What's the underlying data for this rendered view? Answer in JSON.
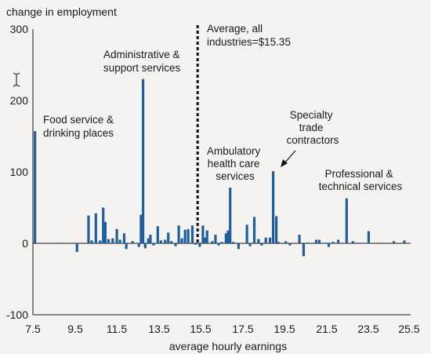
{
  "chart_data": {
    "type": "bar",
    "ylabel": "change in employment",
    "xlabel": "average hourly earnings",
    "xlim": [
      7.5,
      25.5
    ],
    "ylim": [
      -100,
      300
    ],
    "x_ticks": [
      "7.5",
      "9.5",
      "11.5",
      "13.5",
      "15.5",
      "17.5",
      "19.5",
      "21.5",
      "23.5",
      "25.5"
    ],
    "y_ticks": [
      "300",
      "200",
      "100",
      "0",
      "-100"
    ],
    "bar_color": "#1f5fa0",
    "reference_line": {
      "x": 15.35,
      "style": "dotted"
    },
    "annotations": [
      {
        "id": "food",
        "lines": [
          "Food service &",
          "drinking places"
        ]
      },
      {
        "id": "admin",
        "lines": [
          "Administrative &",
          "support services"
        ]
      },
      {
        "id": "average",
        "lines": [
          "Average, all",
          "industries=$15.35"
        ]
      },
      {
        "id": "ambulatory",
        "lines": [
          "Ambulatory",
          "health care",
          "services"
        ]
      },
      {
        "id": "specialty",
        "lines": [
          "Specialty",
          "trade",
          "contractors"
        ]
      },
      {
        "id": "professional",
        "lines": [
          "Professional &",
          "technical services"
        ]
      }
    ],
    "series": [
      {
        "points": [
          [
            7.6,
            157
          ],
          [
            8.7,
            1
          ],
          [
            9.6,
            -12
          ],
          [
            10.15,
            39
          ],
          [
            10.3,
            4
          ],
          [
            10.5,
            42
          ],
          [
            10.7,
            4
          ],
          [
            10.85,
            50
          ],
          [
            10.95,
            30
          ],
          [
            11.1,
            6
          ],
          [
            11.3,
            7
          ],
          [
            11.5,
            20
          ],
          [
            11.65,
            5
          ],
          [
            11.85,
            14
          ],
          [
            11.95,
            -8
          ],
          [
            12.25,
            3
          ],
          [
            12.55,
            -5
          ],
          [
            12.65,
            40
          ],
          [
            12.75,
            230
          ],
          [
            12.85,
            -7
          ],
          [
            13.0,
            7
          ],
          [
            13.1,
            12
          ],
          [
            13.25,
            -3
          ],
          [
            13.45,
            24
          ],
          [
            13.6,
            4
          ],
          [
            13.8,
            5
          ],
          [
            13.95,
            15
          ],
          [
            14.1,
            3
          ],
          [
            14.3,
            -4
          ],
          [
            14.45,
            25
          ],
          [
            14.6,
            7
          ],
          [
            14.75,
            19
          ],
          [
            14.9,
            20
          ],
          [
            15.1,
            25
          ],
          [
            15.25,
            -2
          ],
          [
            15.45,
            -5
          ],
          [
            15.6,
            25
          ],
          [
            15.7,
            8
          ],
          [
            15.8,
            18
          ],
          [
            16.05,
            3
          ],
          [
            16.2,
            12
          ],
          [
            16.35,
            -3
          ],
          [
            16.5,
            2
          ],
          [
            16.7,
            14
          ],
          [
            16.8,
            18
          ],
          [
            16.9,
            78
          ],
          [
            17.05,
            2
          ],
          [
            17.3,
            -8
          ],
          [
            17.7,
            26
          ],
          [
            17.85,
            -4
          ],
          [
            18.05,
            37
          ],
          [
            18.25,
            6
          ],
          [
            18.4,
            -3
          ],
          [
            18.6,
            8
          ],
          [
            18.8,
            8
          ],
          [
            18.95,
            101
          ],
          [
            19.1,
            38
          ],
          [
            19.2,
            2
          ],
          [
            19.55,
            3
          ],
          [
            19.75,
            -3
          ],
          [
            20.2,
            12
          ],
          [
            20.4,
            -18
          ],
          [
            20.6,
            1
          ],
          [
            21.0,
            5
          ],
          [
            21.15,
            5
          ],
          [
            21.45,
            1
          ],
          [
            21.6,
            -5
          ],
          [
            21.8,
            2
          ],
          [
            22.05,
            5
          ],
          [
            22.45,
            63
          ],
          [
            22.75,
            3
          ],
          [
            23.0,
            1
          ],
          [
            23.5,
            17
          ],
          [
            24.2,
            1
          ],
          [
            24.7,
            3
          ],
          [
            25.2,
            4
          ]
        ]
      }
    ]
  }
}
